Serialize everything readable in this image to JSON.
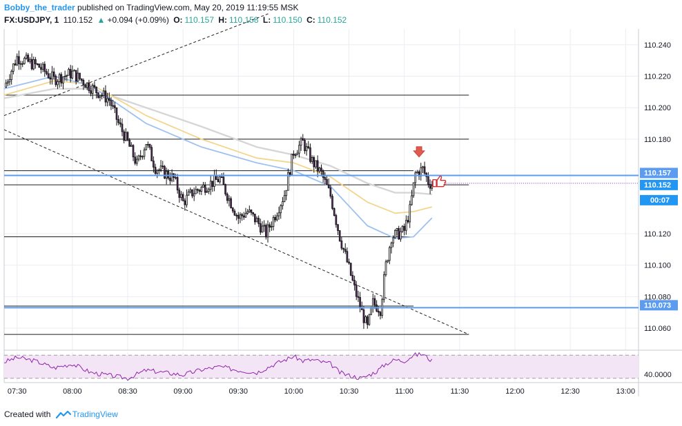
{
  "header": {
    "publisher": "Bobby_the_trader",
    "published_text": "published on TradingView.com, May 20, 2019 11:19:55 MSK"
  },
  "quote": {
    "symbol": "FX:USDJPY, 1",
    "price": "110.152",
    "change": "+0.094 (+0.09%)",
    "o_label": "O:",
    "o": "110.157",
    "h_label": "H:",
    "h": "110.158",
    "l_label": "L:",
    "l": "110.150",
    "c_label": "C:",
    "c": "110.152"
  },
  "footer": {
    "created_with": "Created with",
    "brand": "TradingView"
  },
  "colors": {
    "accent_blue": "#2196f3",
    "level_line_blue": "#5b9cf0",
    "rsi_line": "#8e24aa",
    "ma_fast": "#9ec1ef",
    "ma_mid": "#f3d58c",
    "ma_slow": "#d6d6d6",
    "arrow_red": "#e05a4f"
  },
  "icons": [
    "tradingview-logo-icon",
    "down-arrow-marker-icon",
    "thumbs-up-icon",
    "up-triangle-icon"
  ],
  "chart_data": {
    "type": "candlestick",
    "symbol": "FX:USDJPY",
    "interval": "1",
    "price_axis": {
      "ticks": [
        "110.240",
        "110.220",
        "110.200",
        "110.180",
        "110.120",
        "110.100",
        "110.080",
        "110.060"
      ],
      "range": [
        110.046,
        110.25
      ],
      "visible_partial_labels": [
        "1"
      ]
    },
    "time_axis": {
      "ticks": [
        "07:30",
        "08:00",
        "08:30",
        "09:00",
        "09:30",
        "10:00",
        "10:30",
        "11:00",
        "11:30",
        "12:00",
        "12:30",
        "13:00"
      ],
      "range_minutes": [
        443,
        787
      ]
    },
    "price_labels": [
      {
        "value": 110.157,
        "text": "110.157",
        "kind": "line"
      },
      {
        "value": 110.152,
        "text": "110.152",
        "kind": "last"
      },
      {
        "value": 110.073,
        "text": "110.073",
        "kind": "line"
      }
    ],
    "countdown": "00:07",
    "blue_levels": [
      110.157,
      110.073
    ],
    "horizontal_levels": [
      {
        "price": 110.208,
        "t_start": 443,
        "t_end": 695
      },
      {
        "price": 110.18,
        "t_start": 443,
        "t_end": 695
      },
      {
        "price": 110.16,
        "t_start": 443,
        "t_end": 665
      },
      {
        "price": 110.151,
        "t_start": 443,
        "t_end": 695
      },
      {
        "price": 110.118,
        "t_start": 443,
        "t_end": 665
      },
      {
        "price": 110.074,
        "t_start": 443,
        "t_end": 665
      },
      {
        "price": 110.056,
        "t_start": 443,
        "t_end": 695
      }
    ],
    "trendlines": [
      {
        "t1": 443,
        "p1": 110.186,
        "t2": 695,
        "p2": 110.056
      },
      {
        "t1": 443,
        "p1": 110.195,
        "t2": 587,
        "p2": 110.26
      }
    ],
    "close_path": [
      [
        443,
        110.213
      ],
      [
        450,
        110.232
      ],
      [
        462,
        110.226
      ],
      [
        470,
        110.218
      ],
      [
        480,
        110.222
      ],
      [
        490,
        110.213
      ],
      [
        500,
        110.205
      ],
      [
        505,
        110.19
      ],
      [
        510,
        110.178
      ],
      [
        515,
        110.164
      ],
      [
        520,
        110.178
      ],
      [
        525,
        110.162
      ],
      [
        535,
        110.155
      ],
      [
        540,
        110.14
      ],
      [
        545,
        110.146
      ],
      [
        555,
        110.152
      ],
      [
        560,
        110.155
      ],
      [
        565,
        110.142
      ],
      [
        570,
        110.13
      ],
      [
        575,
        110.134
      ],
      [
        580,
        110.128
      ],
      [
        585,
        110.12
      ],
      [
        590,
        110.132
      ],
      [
        595,
        110.145
      ],
      [
        600,
        110.172
      ],
      [
        605,
        110.178
      ],
      [
        610,
        110.166
      ],
      [
        615,
        110.158
      ],
      [
        620,
        110.144
      ],
      [
        625,
        110.118
      ],
      [
        630,
        110.098
      ],
      [
        633,
        110.085
      ],
      [
        637,
        110.07
      ],
      [
        640,
        110.06
      ],
      [
        643,
        110.076
      ],
      [
        647,
        110.072
      ],
      [
        650,
        110.1
      ],
      [
        653,
        110.118
      ],
      [
        657,
        110.12
      ],
      [
        660,
        110.122
      ],
      [
        663,
        110.135
      ],
      [
        666,
        110.158
      ],
      [
        670,
        110.161
      ],
      [
        673,
        110.153
      ],
      [
        675,
        110.151
      ]
    ],
    "ma_fast": [
      [
        443,
        110.212
      ],
      [
        470,
        110.22
      ],
      [
        490,
        110.214
      ],
      [
        520,
        110.19
      ],
      [
        550,
        110.175
      ],
      [
        580,
        110.165
      ],
      [
        600,
        110.16
      ],
      [
        620,
        110.15
      ],
      [
        640,
        110.125
      ],
      [
        655,
        110.117
      ],
      [
        665,
        110.118
      ],
      [
        675,
        110.13
      ]
    ],
    "ma_mid": [
      [
        443,
        110.208
      ],
      [
        470,
        110.217
      ],
      [
        490,
        110.215
      ],
      [
        520,
        110.195
      ],
      [
        550,
        110.18
      ],
      [
        580,
        110.168
      ],
      [
        600,
        110.165
      ],
      [
        620,
        110.156
      ],
      [
        640,
        110.14
      ],
      [
        655,
        110.133
      ],
      [
        665,
        110.134
      ],
      [
        675,
        110.137
      ]
    ],
    "ma_slow": [
      [
        443,
        110.206
      ],
      [
        470,
        110.212
      ],
      [
        490,
        110.212
      ],
      [
        520,
        110.2
      ],
      [
        550,
        110.188
      ],
      [
        580,
        110.175
      ],
      [
        600,
        110.17
      ],
      [
        620,
        110.163
      ],
      [
        640,
        110.152
      ],
      [
        655,
        110.146
      ],
      [
        665,
        110.146
      ],
      [
        675,
        110.145
      ]
    ],
    "rsi": {
      "label": "40.0000",
      "band_upper": 70,
      "band_lower": 30,
      "range": [
        25,
        75
      ],
      "values": [
        [
          443,
          58
        ],
        [
          450,
          66
        ],
        [
          460,
          60
        ],
        [
          470,
          48
        ],
        [
          480,
          55
        ],
        [
          490,
          40
        ],
        [
          500,
          35
        ],
        [
          510,
          30
        ],
        [
          520,
          44
        ],
        [
          530,
          40
        ],
        [
          540,
          36
        ],
        [
          550,
          45
        ],
        [
          560,
          50
        ],
        [
          570,
          44
        ],
        [
          580,
          40
        ],
        [
          590,
          55
        ],
        [
          600,
          68
        ],
        [
          605,
          60
        ],
        [
          610,
          62
        ],
        [
          620,
          55
        ],
        [
          625,
          40
        ],
        [
          630,
          35
        ],
        [
          637,
          30
        ],
        [
          645,
          42
        ],
        [
          650,
          55
        ],
        [
          655,
          62
        ],
        [
          660,
          60
        ],
        [
          665,
          70
        ],
        [
          670,
          72
        ],
        [
          675,
          60
        ]
      ]
    }
  }
}
